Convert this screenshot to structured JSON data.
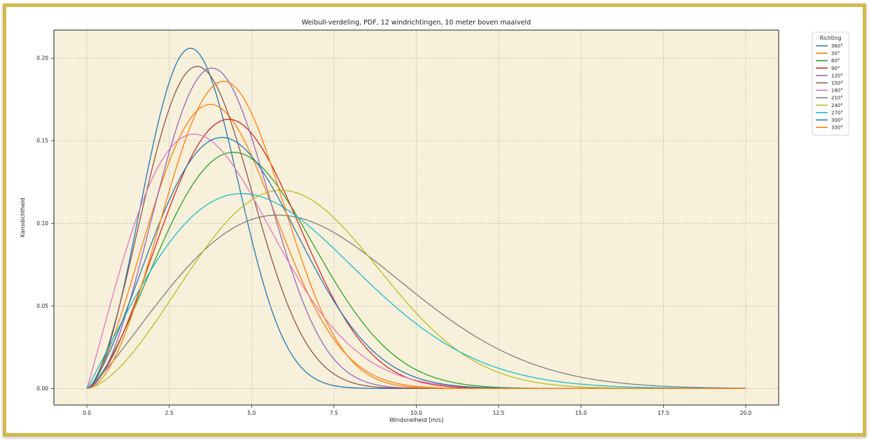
{
  "frame_color": "#d4b84e",
  "chart_data": {
    "type": "line",
    "title": "Weibull-verdeling, PDF, 12 windrichtingen, 10 meter boven maaiveld",
    "xlabel": "Windsnelheid [m/s]",
    "ylabel": "Kansdichtheid",
    "xlim": [
      -1.0,
      21.0
    ],
    "ylim": [
      -0.01,
      0.217
    ],
    "xticks": [
      0.0,
      2.5,
      5.0,
      7.5,
      10.0,
      12.5,
      15.0,
      17.5,
      20.0
    ],
    "xtick_labels": [
      "0.0",
      "2.5",
      "5.0",
      "7.5",
      "10.0",
      "12.5",
      "15.0",
      "17.5",
      "20.0"
    ],
    "yticks": [
      0.0,
      0.05,
      0.1,
      0.15,
      0.2
    ],
    "ytick_labels": [
      "0.00",
      "0.05",
      "0.10",
      "0.15",
      "0.20"
    ],
    "grid": true,
    "plot_background": "#f7f0da",
    "legend": {
      "title": "Richting",
      "placement": "outside-top-right"
    },
    "x_range": [
      0,
      20
    ],
    "series": [
      {
        "name": "360°",
        "color": "#1f77b4",
        "peak_x": 3.15,
        "peak_y": 0.206,
        "shape": 2.75
      },
      {
        "name": "30°",
        "color": "#ff7f0e",
        "peak_x": 3.75,
        "peak_y": 0.172,
        "shape": 2.5
      },
      {
        "name": "60°",
        "color": "#2ca02c",
        "peak_x": 4.45,
        "peak_y": 0.143,
        "shape": 2.45
      },
      {
        "name": "90°",
        "color": "#d62728",
        "peak_x": 4.3,
        "peak_y": 0.163,
        "shape": 2.6
      },
      {
        "name": "120°",
        "color": "#9467bd",
        "peak_x": 3.8,
        "peak_y": 0.194,
        "shape": 2.78
      },
      {
        "name": "150°",
        "color": "#8c564b",
        "peak_x": 3.35,
        "peak_y": 0.195,
        "shape": 2.6
      },
      {
        "name": "180°",
        "color": "#e377c2",
        "peak_x": 3.25,
        "peak_y": 0.154,
        "shape": 2.05
      },
      {
        "name": "210°",
        "color": "#7f7f7f",
        "peak_x": 5.8,
        "peak_y": 0.105,
        "shape": 2.2
      },
      {
        "name": "240°",
        "color": "#bcbd22",
        "peak_x": 5.9,
        "peak_y": 0.12,
        "shape": 2.6
      },
      {
        "name": "270°",
        "color": "#17becf",
        "peak_x": 4.7,
        "peak_y": 0.118,
        "shape": 2.05
      },
      {
        "name": "300°",
        "color": "#1f77b4",
        "peak_x": 4.1,
        "peak_y": 0.152,
        "shape": 2.4
      },
      {
        "name": "330°",
        "color": "#ff7f0e",
        "peak_x": 4.15,
        "peak_y": 0.186,
        "shape": 2.85
      }
    ]
  }
}
